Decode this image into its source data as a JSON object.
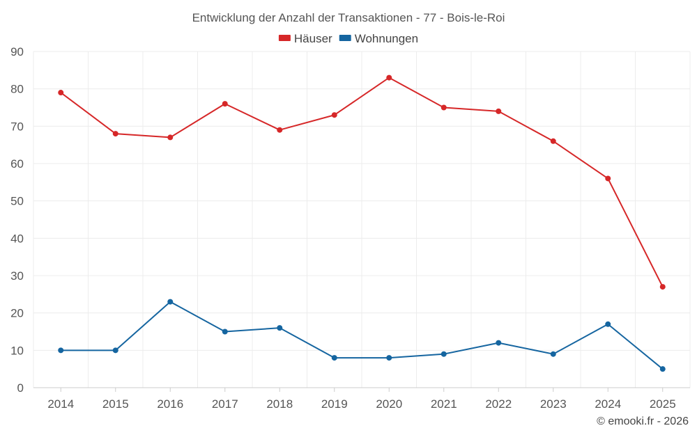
{
  "chart_data": {
    "type": "line",
    "title": "Entwicklung der Anzahl der Transaktionen - 77 - Bois-le-Roi",
    "x": [
      "2014",
      "2015",
      "2016",
      "2017",
      "2018",
      "2019",
      "2020",
      "2021",
      "2022",
      "2023",
      "2024",
      "2025"
    ],
    "ylim": [
      0,
      90
    ],
    "yticks": [
      0,
      10,
      20,
      30,
      40,
      50,
      60,
      70,
      80,
      90
    ],
    "grid": true,
    "legend_position": "top-center",
    "series": [
      {
        "name": "Häuser",
        "color": "#d62728",
        "values": [
          79,
          68,
          67,
          76,
          69,
          73,
          83,
          75,
          74,
          66,
          56,
          27
        ]
      },
      {
        "name": "Wohnungen",
        "color": "#1565a0",
        "values": [
          10,
          10,
          23,
          15,
          16,
          8,
          8,
          9,
          12,
          9,
          17,
          5
        ]
      }
    ]
  },
  "credit": "© emooki.fr - 2026"
}
